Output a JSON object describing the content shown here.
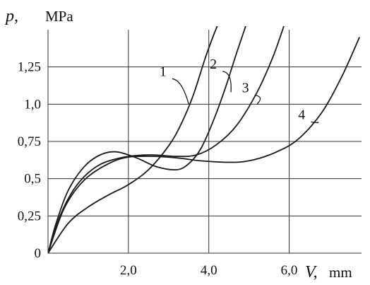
{
  "chart_data": {
    "type": "line",
    "ylabel": "p,",
    "ylabel_unit": "MPa",
    "xlabel": "V,",
    "xlabel_unit": "mm",
    "xlim": [
      0,
      7.8
    ],
    "ylim": [
      0,
      1.5
    ],
    "x_ticks": [
      2.0,
      4.0,
      6.0
    ],
    "x_tick_labels": [
      "2,0",
      "4,0",
      "6,0"
    ],
    "y_ticks": [
      0,
      0.25,
      0.5,
      0.75,
      1.0,
      1.25
    ],
    "y_tick_labels": [
      "0",
      "0,25",
      "0,5",
      "0,75",
      "1,0",
      "1,25"
    ],
    "grid": true,
    "series": [
      {
        "name": "1",
        "x": [
          0,
          0.5,
          1.0,
          1.5,
          2.0,
          2.5,
          3.0,
          3.3,
          3.6,
          3.9,
          4.1,
          4.25
        ],
        "y": [
          0,
          0.2,
          0.31,
          0.39,
          0.46,
          0.56,
          0.72,
          0.86,
          1.05,
          1.3,
          1.45,
          1.55
        ]
      },
      {
        "name": "2",
        "x": [
          0,
          0.2,
          0.5,
          0.9,
          1.3,
          1.7,
          2.2,
          2.7,
          3.2,
          3.5,
          3.8,
          4.1,
          4.4,
          4.7,
          4.95
        ],
        "y": [
          0,
          0.2,
          0.42,
          0.58,
          0.66,
          0.68,
          0.64,
          0.58,
          0.56,
          0.6,
          0.7,
          0.88,
          1.1,
          1.35,
          1.55
        ]
      },
      {
        "name": "3",
        "x": [
          0,
          0.3,
          0.7,
          1.2,
          1.8,
          2.5,
          3.2,
          3.7,
          4.2,
          4.7,
          5.2,
          5.6,
          5.9
        ],
        "y": [
          0,
          0.25,
          0.45,
          0.58,
          0.64,
          0.66,
          0.65,
          0.66,
          0.73,
          0.86,
          1.08,
          1.32,
          1.55
        ]
      },
      {
        "name": "4",
        "x": [
          0,
          0.4,
          0.9,
          1.5,
          2.0,
          2.6,
          3.2,
          3.8,
          4.5,
          5.0,
          5.6,
          6.2,
          6.8,
          7.3,
          7.75
        ],
        "y": [
          0,
          0.3,
          0.49,
          0.6,
          0.645,
          0.65,
          0.64,
          0.62,
          0.61,
          0.62,
          0.67,
          0.76,
          0.94,
          1.18,
          1.45
        ]
      }
    ],
    "curve_labels": [
      {
        "text": "1",
        "series": "1",
        "at": [
          2.95,
          1.19
        ],
        "to": [
          3.5,
          1.0
        ]
      },
      {
        "text": "2",
        "series": "2",
        "at": [
          4.2,
          1.24
        ],
        "to": [
          4.55,
          1.08
        ]
      },
      {
        "text": "3",
        "series": "3",
        "at": [
          5.0,
          1.08
        ],
        "to": [
          5.2,
          1.0
        ]
      },
      {
        "text": "4",
        "series": "4",
        "at": [
          6.4,
          0.9
        ],
        "to": [
          6.7,
          0.88
        ]
      }
    ]
  }
}
